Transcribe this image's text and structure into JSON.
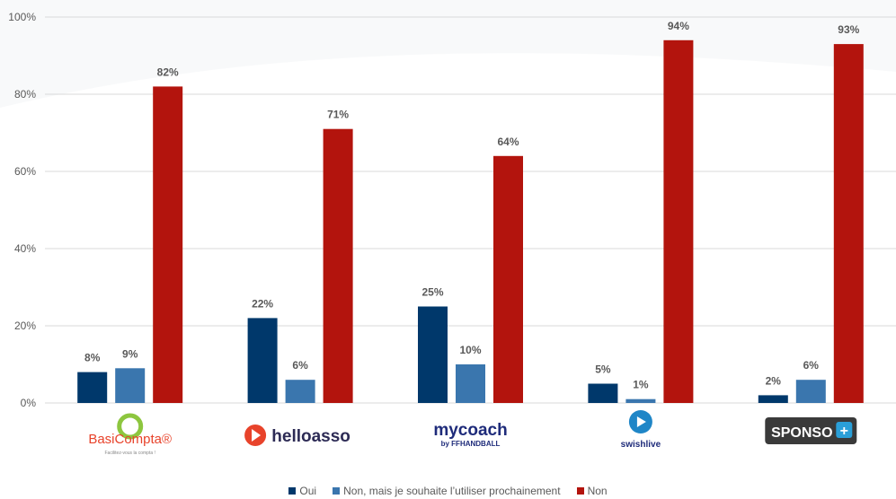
{
  "chart_data": {
    "type": "bar",
    "categories": [
      "BasiCompta",
      "helloasso",
      "mycoach",
      "swishlive",
      "SPONSO"
    ],
    "series": [
      {
        "name": "Oui",
        "values": [
          8,
          22,
          25,
          5,
          2
        ],
        "color": "#00386B"
      },
      {
        "name": "Non, mais je souhaite l’utiliser prochainement",
        "values": [
          9,
          6,
          10,
          1,
          6
        ],
        "color": "#3A76AE"
      },
      {
        "name": "Non",
        "values": [
          82,
          71,
          64,
          94,
          93
        ],
        "color": "#B3140D"
      }
    ],
    "ylim": [
      0,
      100
    ],
    "yticks": [
      "0%",
      "20%",
      "40%",
      "60%",
      "80%",
      "100%"
    ],
    "value_suffix": "%",
    "grid": true,
    "legend_position": "bottom",
    "logos": [
      {
        "text": "BasiCompta",
        "sup": "®",
        "tagline": "Facilitez-vous la compta !",
        "color": "#E8432B"
      },
      {
        "text": "helloasso",
        "color": "#2D2B55"
      },
      {
        "text": "mycoach",
        "subtext": "by FFHANDBALL",
        "color": "#1E2B7A"
      },
      {
        "text": "swishlive",
        "color": "#1E2B7A"
      },
      {
        "text": "SPONSO",
        "badge": "+",
        "color": "#ffffff",
        "bg": "#3A3A3A",
        "badge_color": "#2A9FD8"
      }
    ]
  }
}
